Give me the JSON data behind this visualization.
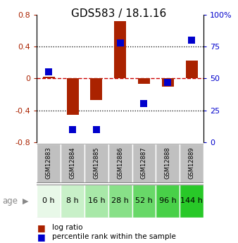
{
  "title": "GDS583 / 18.1.16",
  "samples": [
    "GSM12883",
    "GSM12884",
    "GSM12885",
    "GSM12886",
    "GSM12887",
    "GSM12888",
    "GSM12889"
  ],
  "ages": [
    "0 h",
    "8 h",
    "16 h",
    "28 h",
    "52 h",
    "96 h",
    "144 h"
  ],
  "log_ratio": [
    0.02,
    -0.46,
    -0.27,
    0.72,
    -0.07,
    -0.1,
    0.22
  ],
  "percentile": [
    55,
    10,
    10,
    78,
    30,
    47,
    80
  ],
  "log_ratio_color": "#aa2200",
  "percentile_color": "#0000cc",
  "zero_line_color": "#cc0000",
  "ylim_left": [
    -0.8,
    0.8
  ],
  "ylim_right": [
    0,
    100
  ],
  "yticks_left": [
    -0.8,
    -0.4,
    0.0,
    0.4,
    0.8
  ],
  "yticks_right": [
    0,
    25,
    50,
    75,
    100
  ],
  "ytick_labels_right": [
    "0",
    "25",
    "50",
    "75",
    "100%"
  ],
  "dotted_lines_black": [
    -0.4,
    0.4
  ],
  "age_colors": [
    "#e8f8e8",
    "#c8f0c8",
    "#a8e8a8",
    "#88e088",
    "#68d868",
    "#48d048",
    "#28c828"
  ],
  "bar_width": 0.5,
  "marker_size": 7,
  "legend_log_ratio": "log ratio",
  "legend_percentile": "percentile rank within the sample",
  "age_label": "age",
  "title_fontsize": 11,
  "tick_fontsize": 8,
  "sample_fontsize": 6,
  "age_fontsize": 8,
  "legend_fontsize": 7.5
}
